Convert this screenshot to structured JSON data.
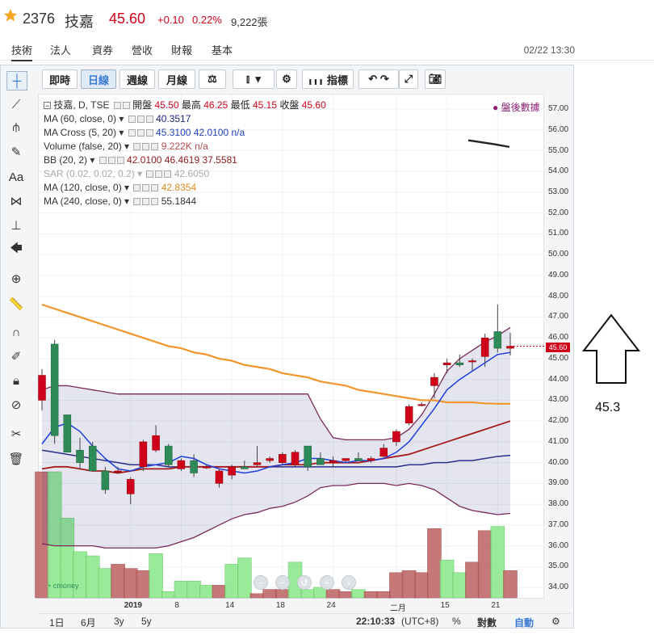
{
  "header": {
    "code": "2376",
    "name": "技嘉",
    "price": "45.60",
    "change": "+0.10",
    "percent": "0.22%",
    "volume": "9,222張"
  },
  "tabs": [
    "技術",
    "法人",
    "資券",
    "營收",
    "財報",
    "基本"
  ],
  "timestamp": "02/22 13:30",
  "toolbar": {
    "buttons": [
      "即時",
      "日線",
      "週線",
      "月線"
    ],
    "indicator_label": "指標"
  },
  "legend": {
    "main_title": "技嘉, D, TSE",
    "open_label": "開盤",
    "open": "45.50",
    "high_label": "最高",
    "high": "46.25",
    "low_label": "最低",
    "low": "45.15",
    "close_label": "收盤",
    "close": "45.60",
    "after_hours": "盤後數據",
    "rows": [
      {
        "name": "MA (60, close, 0)",
        "values": "40.3517",
        "color": "#1a237e"
      },
      {
        "name": "MA Cross (5, 20)",
        "values": "45.3100 42.0100 n/a",
        "color": "#1f3fbf"
      },
      {
        "name": "Volume (false, 20)",
        "values": "9.222K n/a",
        "color": "#b74a4a"
      },
      {
        "name": "BB (20, 2)",
        "values": "42.0100 46.4619 37.5581",
        "color": "#8b1a1a"
      },
      {
        "name": "SAR (0.02, 0.02, 0.2)",
        "values": "42.6050",
        "color": "#aaaaaa"
      },
      {
        "name": "MA (120, close, 0)",
        "values": "42.8354",
        "color": "#e08a1e"
      },
      {
        "name": "MA (240, close, 0)",
        "values": "55.1844",
        "color": "#333333"
      }
    ]
  },
  "price_tag": "45.60",
  "annotation_value": "45.3",
  "bottom": {
    "ranges": [
      "1日",
      "6月",
      "3y",
      "5y"
    ],
    "clock": "22:10:33",
    "tz": "(UTC+8)",
    "pct": "%",
    "log": "對數",
    "auto": "自動"
  },
  "chart_data": {
    "type": "candlestick",
    "y_ticks": [
      "57.00",
      "56.00",
      "55.00",
      "54.00",
      "53.00",
      "52.00",
      "51.00",
      "50.00",
      "49.00",
      "48.00",
      "47.00",
      "46.00",
      "45.00",
      "44.00",
      "43.00",
      "42.00",
      "41.00",
      "40.00",
      "39.00",
      "38.00",
      "37.00",
      "36.00",
      "35.00",
      "34.00"
    ],
    "x_ticks": [
      "2019",
      "8",
      "14",
      "18",
      "24",
      "二月",
      "15",
      "21"
    ],
    "ylim": [
      33.5,
      57.7
    ],
    "up_color": "#d0021b",
    "down_color": "#2e8b57",
    "candles": [
      {
        "o": 43.0,
        "h": 44.5,
        "l": 42.5,
        "c": 44.2
      },
      {
        "o": 45.7,
        "h": 45.9,
        "l": 40.9,
        "c": 41.3
      },
      {
        "o": 42.3,
        "h": 42.3,
        "l": 40.6,
        "c": 40.5
      },
      {
        "o": 40.6,
        "h": 41.2,
        "l": 39.7,
        "c": 40.0
      },
      {
        "o": 40.8,
        "h": 41.0,
        "l": 39.6,
        "c": 39.6
      },
      {
        "o": 39.6,
        "h": 39.8,
        "l": 38.5,
        "c": 38.7
      },
      {
        "o": 39.6,
        "h": 39.8,
        "l": 39.5,
        "c": 39.6
      },
      {
        "o": 38.5,
        "h": 39.3,
        "l": 38.0,
        "c": 39.2
      },
      {
        "o": 39.8,
        "h": 41.1,
        "l": 39.6,
        "c": 41.0
      },
      {
        "o": 40.6,
        "h": 41.8,
        "l": 40.5,
        "c": 41.3
      },
      {
        "o": 40.8,
        "h": 40.9,
        "l": 39.8,
        "c": 39.9
      },
      {
        "o": 39.7,
        "h": 40.2,
        "l": 39.6,
        "c": 40.1
      },
      {
        "o": 40.1,
        "h": 40.4,
        "l": 39.3,
        "c": 39.5
      },
      {
        "o": 39.8,
        "h": 39.9,
        "l": 39.7,
        "c": 39.8
      },
      {
        "o": 39.0,
        "h": 39.7,
        "l": 38.8,
        "c": 39.6
      },
      {
        "o": 39.4,
        "h": 39.9,
        "l": 39.2,
        "c": 39.8
      },
      {
        "o": 39.8,
        "h": 40.1,
        "l": 39.7,
        "c": 39.7
      },
      {
        "o": 39.9,
        "h": 40.8,
        "l": 39.8,
        "c": 40.0
      },
      {
        "o": 40.1,
        "h": 40.3,
        "l": 40.0,
        "c": 40.2
      },
      {
        "o": 40.0,
        "h": 40.5,
        "l": 39.9,
        "c": 40.4
      },
      {
        "o": 39.9,
        "h": 40.6,
        "l": 39.8,
        "c": 40.5
      },
      {
        "o": 40.8,
        "h": 40.8,
        "l": 39.6,
        "c": 39.8
      },
      {
        "o": 40.2,
        "h": 40.5,
        "l": 39.9,
        "c": 39.9
      },
      {
        "o": 40.0,
        "h": 40.3,
        "l": 39.8,
        "c": 40.1
      },
      {
        "o": 40.1,
        "h": 40.2,
        "l": 40.0,
        "c": 40.2
      },
      {
        "o": 40.2,
        "h": 40.5,
        "l": 40.1,
        "c": 40.1
      },
      {
        "o": 40.1,
        "h": 40.3,
        "l": 40.0,
        "c": 40.2
      },
      {
        "o": 40.3,
        "h": 40.9,
        "l": 40.2,
        "c": 40.7
      },
      {
        "o": 41.0,
        "h": 41.6,
        "l": 40.8,
        "c": 41.5
      },
      {
        "o": 41.9,
        "h": 42.8,
        "l": 41.8,
        "c": 42.7
      },
      {
        "o": 42.8,
        "h": 42.9,
        "l": 42.7,
        "c": 42.8
      },
      {
        "o": 43.7,
        "h": 44.3,
        "l": 43.1,
        "c": 44.1
      },
      {
        "o": 44.7,
        "h": 45.0,
        "l": 44.3,
        "c": 44.8
      },
      {
        "o": 44.8,
        "h": 45.2,
        "l": 44.6,
        "c": 44.7
      },
      {
        "o": 44.9,
        "h": 45.0,
        "l": 44.4,
        "c": 44.9
      },
      {
        "o": 45.1,
        "h": 46.2,
        "l": 44.6,
        "c": 46.0
      },
      {
        "o": 46.3,
        "h": 47.6,
        "l": 45.3,
        "c": 45.5
      },
      {
        "o": 45.5,
        "h": 46.25,
        "l": 45.15,
        "c": 45.6
      }
    ],
    "volumes": [
      {
        "v": 0.6,
        "up": true
      },
      {
        "v": 0.6,
        "up": false
      },
      {
        "v": 0.38,
        "up": false
      },
      {
        "v": 0.22,
        "up": false
      },
      {
        "v": 0.2,
        "up": false
      },
      {
        "v": 0.14,
        "up": false
      },
      {
        "v": 0.16,
        "up": true
      },
      {
        "v": 0.14,
        "up": true
      },
      {
        "v": 0.13,
        "up": true
      },
      {
        "v": 0.21,
        "up": false
      },
      {
        "v": 0.03,
        "up": false
      },
      {
        "v": 0.08,
        "up": false
      },
      {
        "v": 0.08,
        "up": false
      },
      {
        "v": 0.06,
        "up": false
      },
      {
        "v": 0.06,
        "up": true
      },
      {
        "v": 0.16,
        "up": false
      },
      {
        "v": 0.19,
        "up": false
      },
      {
        "v": 0.02,
        "up": true
      },
      {
        "v": 0.04,
        "up": true
      },
      {
        "v": 0.04,
        "up": true
      },
      {
        "v": 0.17,
        "up": false
      },
      {
        "v": 0.04,
        "up": false
      },
      {
        "v": 0.05,
        "up": false
      },
      {
        "v": 0.04,
        "up": true
      },
      {
        "v": 0.03,
        "up": true
      },
      {
        "v": 0.04,
        "up": false
      },
      {
        "v": 0.03,
        "up": true
      },
      {
        "v": 0.03,
        "up": true
      },
      {
        "v": 0.12,
        "up": true
      },
      {
        "v": 0.13,
        "up": true
      },
      {
        "v": 0.12,
        "up": true
      },
      {
        "v": 0.33,
        "up": true
      },
      {
        "v": 0.18,
        "up": false
      },
      {
        "v": 0.12,
        "up": false
      },
      {
        "v": 0.17,
        "up": true
      },
      {
        "v": 0.32,
        "up": true
      },
      {
        "v": 0.34,
        "up": false
      },
      {
        "v": 0.13,
        "up": true
      }
    ],
    "ma_cross_fast": [
      40.9,
      41.7,
      41.9,
      41.5,
      40.8,
      40.2,
      39.7,
      39.6,
      39.8,
      39.9,
      40.0,
      40.3,
      40.2,
      39.9,
      39.7,
      39.6,
      39.5,
      39.6,
      39.8,
      39.9,
      40.0,
      40.2,
      40.2,
      40.1,
      40.0,
      40.1,
      40.1,
      40.2,
      40.5,
      41.0,
      41.8,
      42.6,
      43.5,
      44.0,
      44.4,
      44.8,
      45.2,
      45.3
    ],
    "ma_cross_slow": [
      39.7,
      39.8,
      39.8,
      39.7,
      39.6,
      39.6,
      39.5,
      39.6,
      39.7,
      39.7,
      39.7,
      39.8,
      39.8,
      39.8,
      39.8,
      39.8,
      39.8,
      39.8,
      39.8,
      39.9,
      39.9,
      39.9,
      40.0,
      40.0,
      40.0,
      40.0,
      40.1,
      40.2,
      40.3,
      40.4,
      40.6,
      40.8,
      41.0,
      41.2,
      41.4,
      41.6,
      41.8,
      42.0
    ],
    "ma60": [
      40.6,
      40.5,
      40.4,
      40.3,
      40.2,
      40.1,
      40.0,
      39.9,
      39.9,
      39.9,
      39.8,
      39.8,
      39.8,
      39.8,
      39.8,
      39.8,
      39.8,
      39.8,
      39.8,
      39.8,
      39.8,
      39.8,
      39.8,
      39.8,
      39.8,
      39.8,
      39.8,
      39.8,
      39.8,
      39.9,
      39.9,
      40.0,
      40.0,
      40.1,
      40.1,
      40.2,
      40.3,
      40.35
    ],
    "bb_upper": [
      43.5,
      43.7,
      43.7,
      43.6,
      43.5,
      43.4,
      43.3,
      43.3,
      43.3,
      43.3,
      43.3,
      43.3,
      43.3,
      43.3,
      43.3,
      43.3,
      43.3,
      43.3,
      43.3,
      43.3,
      43.3,
      43.3,
      42.1,
      41.2,
      41.1,
      41.1,
      41.1,
      41.1,
      41.2,
      41.6,
      42.3,
      43.3,
      44.4,
      45.0,
      45.4,
      45.8,
      46.1,
      46.5
    ],
    "bb_lower": [
      36.1,
      36.0,
      36.0,
      36.0,
      36.0,
      35.9,
      35.9,
      35.9,
      35.9,
      35.9,
      36.0,
      36.2,
      36.4,
      36.7,
      37.0,
      37.3,
      37.5,
      37.6,
      37.8,
      37.9,
      38.1,
      38.4,
      38.8,
      38.9,
      38.9,
      39.0,
      39.0,
      39.0,
      38.9,
      39.0,
      38.9,
      38.7,
      38.3,
      37.9,
      37.7,
      37.6,
      37.5,
      37.56
    ],
    "ma120": [
      47.6,
      47.4,
      47.2,
      47.0,
      46.8,
      46.6,
      46.4,
      46.2,
      46.0,
      45.8,
      45.6,
      45.5,
      45.3,
      45.2,
      45.0,
      44.9,
      44.7,
      44.6,
      44.5,
      44.3,
      44.2,
      44.1,
      43.9,
      43.8,
      43.7,
      43.5,
      43.4,
      43.3,
      43.2,
      43.1,
      43.0,
      43.0,
      42.9,
      42.9,
      42.9,
      42.85,
      42.83,
      42.83
    ],
    "ma240_segment": [
      55.5,
      55.4,
      55.3,
      55.18
    ]
  }
}
